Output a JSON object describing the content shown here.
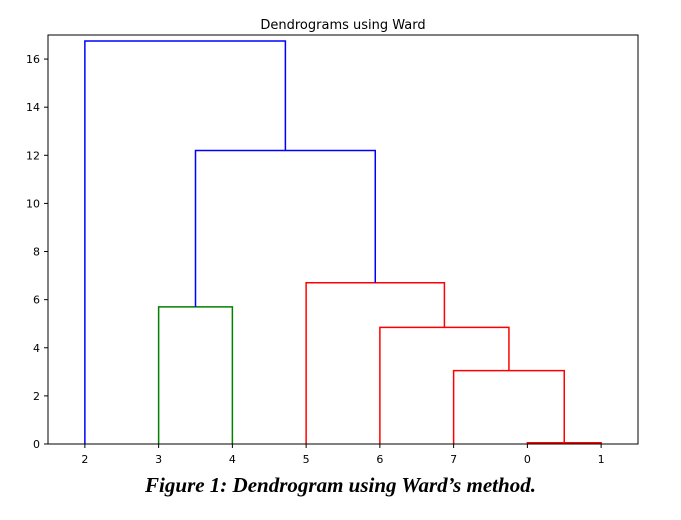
{
  "chart_data": {
    "type": "dendrogram",
    "title": "Dendrograms using Ward",
    "xlabel": "",
    "ylabel": "",
    "ylim": [
      0,
      17
    ],
    "yticks": [
      0,
      2,
      4,
      6,
      8,
      10,
      12,
      14,
      16
    ],
    "leaf_labels": [
      "2",
      "3",
      "4",
      "5",
      "6",
      "7",
      "0",
      "1"
    ],
    "links": [
      {
        "name": "merge-0-1",
        "left": 6.5,
        "right": 7.5,
        "height": 0.05,
        "left_base": 0,
        "right_base": 0,
        "color": "#ff0000"
      },
      {
        "name": "merge-7-01",
        "left": 5.5,
        "right": 7.0,
        "height": 3.05,
        "left_base": 0,
        "right_base": 0.05,
        "color": "#ff0000"
      },
      {
        "name": "merge-6-701",
        "left": 4.5,
        "right": 6.25,
        "height": 4.85,
        "left_base": 0,
        "right_base": 3.05,
        "color": "#ff0000"
      },
      {
        "name": "merge-5-6701",
        "left": 3.5,
        "right": 5.375,
        "height": 6.7,
        "left_base": 0,
        "right_base": 4.85,
        "color": "#ff0000"
      },
      {
        "name": "merge-3-4",
        "left": 1.5,
        "right": 2.5,
        "height": 5.7,
        "left_base": 0,
        "right_base": 0,
        "color": "#008000"
      },
      {
        "name": "merge-34-rest",
        "left": 2.0,
        "right": 4.4375,
        "height": 12.2,
        "left_base": 5.7,
        "right_base": 6.7,
        "color": "#0000ff"
      },
      {
        "name": "merge-root",
        "left": 0.5,
        "right": 3.21875,
        "height": 16.75,
        "left_base": 0,
        "right_base": 12.2,
        "color": "#0000ff"
      }
    ]
  },
  "caption": "Figure 1: Dendrogram using Ward’s method."
}
